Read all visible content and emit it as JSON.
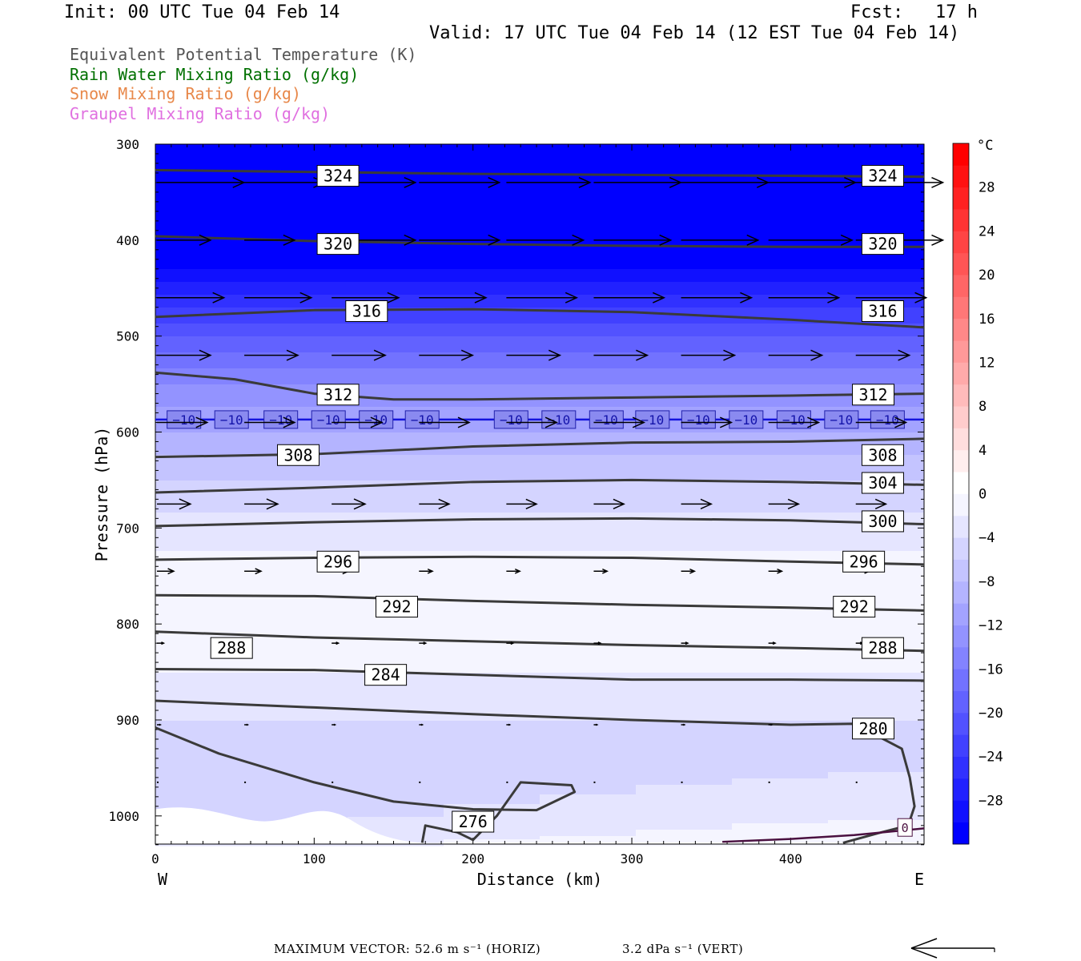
{
  "header": {
    "init": "Init: 00 UTC Tue 04 Feb 14",
    "fcst": "Fcst:   17 h",
    "valid": "Valid: 17 UTC Tue 04 Feb 14 (12 EST Tue 04 Feb 14)"
  },
  "legend": [
    {
      "text": "Equivalent Potential Temperature (K)",
      "color": "#555555"
    },
    {
      "text": "Rain Water Mixing Ratio (g/kg)",
      "color": "#007000"
    },
    {
      "text": "Snow Mixing Ratio (g/kg)",
      "color": "#e8884a"
    },
    {
      "text": "Graupel Mixing Ratio (g/kg)",
      "color": "#e070e0"
    }
  ],
  "footer": {
    "max_vector_label": "MAXIMUM VECTOR:",
    "horiz": "52.6 m s⁻¹ (HORIZ)",
    "vert": "3.2 dPa s⁻¹ (VERT)"
  },
  "chart_data": {
    "type": "cross-section",
    "xlabel": "Distance (km)",
    "ylabel": "Pressure (hPa)",
    "x_range": [
      0,
      484
    ],
    "y_range": [
      1030,
      300
    ],
    "y_scale": "linear, pressure decreasing upward",
    "x_ticks": [
      0,
      100,
      200,
      300,
      400
    ],
    "y_ticks": [
      300,
      400,
      500,
      600,
      700,
      800,
      900,
      1000
    ],
    "x_end_labels": {
      "left": "W",
      "right": "E"
    },
    "theta_e_contours": [
      {
        "value": 324,
        "x": [
          0,
          100,
          200,
          300,
          400,
          484
        ],
        "p": [
          327,
          329,
          331,
          332,
          333,
          334
        ],
        "labels_x": [
          115,
          458
        ]
      },
      {
        "value": 320,
        "x": [
          0,
          100,
          200,
          300,
          400,
          484
        ],
        "p": [
          396,
          401,
          404,
          406,
          407,
          407
        ],
        "labels_x": [
          115,
          458
        ]
      },
      {
        "value": 316,
        "x": [
          0,
          100,
          200,
          300,
          400,
          484
        ],
        "p": [
          480,
          473,
          472,
          475,
          483,
          491
        ],
        "labels_x": [
          133,
          458
        ]
      },
      {
        "value": 312,
        "x": [
          0,
          50,
          100,
          150,
          200,
          300,
          400,
          484
        ],
        "p": [
          538,
          545,
          560,
          566,
          566,
          564,
          562,
          560
        ],
        "labels_x": [
          115,
          452
        ]
      },
      {
        "value": 308,
        "x": [
          0,
          100,
          200,
          300,
          400,
          484
        ],
        "p": [
          626,
          623,
          615,
          611,
          610,
          607
        ],
        "labels_x": [
          90,
          458
        ]
      },
      {
        "value": 304,
        "x": [
          0,
          100,
          200,
          300,
          400,
          484
        ],
        "p": [
          663,
          658,
          652,
          650,
          652,
          655
        ],
        "labels_x": [
          458
        ]
      },
      {
        "value": 300,
        "x": [
          0,
          100,
          200,
          300,
          400,
          484
        ],
        "p": [
          698,
          694,
          691,
          690,
          692,
          696
        ],
        "labels_x": [
          458
        ]
      },
      {
        "value": 296,
        "x": [
          0,
          100,
          200,
          300,
          400,
          484
        ],
        "p": [
          733,
          731,
          730,
          731,
          735,
          738
        ],
        "labels_x": [
          115,
          446
        ]
      },
      {
        "value": 292,
        "x": [
          0,
          100,
          200,
          300,
          400,
          484
        ],
        "p": [
          770,
          771,
          776,
          780,
          783,
          786
        ],
        "labels_x": [
          152,
          440
        ]
      },
      {
        "value": 288,
        "x": [
          0,
          100,
          200,
          300,
          400,
          484
        ],
        "p": [
          808,
          814,
          818,
          822,
          825,
          828
        ],
        "labels_x": [
          48,
          458
        ]
      },
      {
        "value": 284,
        "x": [
          0,
          100,
          200,
          300,
          400,
          484
        ],
        "p": [
          847,
          848,
          853,
          858,
          858,
          859
        ],
        "labels_x": [
          145
        ]
      },
      {
        "value": 280,
        "x": [
          0,
          100,
          200,
          300,
          400,
          440,
          470,
          475,
          478,
          474,
          455,
          433
        ],
        "p": [
          880,
          887,
          894,
          900,
          905,
          904,
          930,
          960,
          990,
          1010,
          1018,
          1028
        ],
        "labels_x": [
          452
        ]
      },
      {
        "value": 276,
        "x": [
          0,
          40,
          100,
          150,
          200,
          240,
          264,
          262,
          230,
          215,
          200,
          190,
          170,
          168
        ],
        "p": [
          908,
          935,
          965,
          985,
          993,
          994,
          975,
          968,
          965,
          1000,
          1025,
          1017,
          1010,
          1028
        ],
        "labels_x": [
          200
        ]
      }
    ],
    "theta_e_label_p": {
      "324": 333,
      "320": 404,
      "316": 474,
      "312": 561,
      "308": 624,
      "304": 653,
      "300": 693,
      "296": 735,
      "292": 782,
      "288": 825,
      "284": 853,
      "280": 909,
      "276": 1006
    },
    "isotherm_minus10": {
      "value": -10,
      "p": 587,
      "labels_x": [
        18,
        48,
        79,
        109,
        139,
        168,
        224,
        254,
        284,
        313,
        342,
        372,
        402,
        432,
        461
      ]
    },
    "isotherm_0": {
      "value": 0,
      "x": [
        357,
        400,
        440,
        484
      ],
      "p": [
        1027,
        1024,
        1020,
        1013
      ],
      "labels_x": [
        472
      ]
    },
    "temperature_colorbar": {
      "unit": "°C",
      "labels": [
        "28",
        "24",
        "20",
        "16",
        "12",
        "8",
        "4",
        "0",
        "−4",
        "−8",
        "−12",
        "−16",
        "−20",
        "−24",
        "−28"
      ],
      "min": -32,
      "max": 32,
      "step": 2
    },
    "temperature_profile": {
      "p": [
        300,
        350,
        400,
        450,
        500,
        550,
        600,
        650,
        700,
        750,
        800,
        850,
        900,
        950,
        1000,
        1030
      ],
      "t_west": [
        -45,
        -41,
        -34,
        -27,
        -20,
        -14,
        -10,
        -6,
        -3,
        -1,
        -1,
        -2,
        -4,
        -6,
        -5,
        -3
      ],
      "t_east": [
        -45,
        -41,
        -34,
        -27,
        -20,
        -14,
        -10,
        -6,
        -3,
        -1,
        0,
        -2,
        -4,
        -4,
        -2,
        0
      ]
    },
    "wind_vectors": [
      {
        "p": 340,
        "x": [
          0,
          55,
          110,
          165,
          220,
          275,
          330,
          385,
          440
        ],
        "u": [
          52,
          48,
          50,
          48,
          50,
          52,
          52,
          52,
          52
        ]
      },
      {
        "p": 400,
        "x": [
          0,
          55,
          110,
          165,
          220,
          275,
          330,
          385,
          440
        ],
        "u": [
          32,
          30,
          50,
          48,
          46,
          46,
          46,
          50,
          52
        ]
      },
      {
        "p": 460,
        "x": [
          0,
          55,
          110,
          165,
          220,
          275,
          330,
          385,
          440
        ],
        "u": [
          40,
          40,
          40,
          40,
          42,
          42,
          42,
          42,
          42
        ]
      },
      {
        "p": 520,
        "x": [
          0,
          55,
          110,
          165,
          220,
          275,
          330,
          385,
          440
        ],
        "u": [
          32,
          32,
          32,
          32,
          32,
          32,
          32,
          32,
          32
        ]
      },
      {
        "p": 590,
        "x": [
          0,
          55,
          110,
          165,
          220,
          275,
          330,
          385,
          440
        ],
        "u": [
          30,
          30,
          30,
          30,
          30,
          30,
          30,
          30,
          30
        ]
      },
      {
        "p": 675,
        "x": [
          0,
          55,
          110,
          165,
          220,
          275,
          330,
          385,
          440
        ],
        "u": [
          20,
          20,
          20,
          18,
          18,
          18,
          18,
          18,
          18
        ]
      },
      {
        "p": 745,
        "x": [
          0,
          55,
          110,
          165,
          220,
          275,
          330,
          385,
          440
        ],
        "u": [
          10,
          10,
          10,
          8,
          8,
          8,
          8,
          8,
          8
        ]
      },
      {
        "p": 820,
        "x": [
          0,
          55,
          110,
          165,
          220,
          275,
          330,
          385,
          440
        ],
        "u": [
          4,
          4,
          4,
          4,
          4,
          4,
          4,
          4,
          4
        ]
      },
      {
        "p": 905,
        "x": [
          0,
          55,
          110,
          165,
          220,
          275,
          330,
          385,
          440
        ],
        "u": [
          2,
          2,
          2,
          2,
          2,
          2,
          2,
          2,
          2
        ]
      },
      {
        "p": 965,
        "x": [
          0,
          55,
          110,
          165,
          220,
          275,
          330,
          385,
          440
        ],
        "u": [
          1,
          1,
          1,
          1,
          1,
          1,
          1,
          1,
          1
        ]
      }
    ],
    "max_vector": {
      "horiz_m_s": 52.6,
      "vert_dPa_s": 3.2
    }
  }
}
